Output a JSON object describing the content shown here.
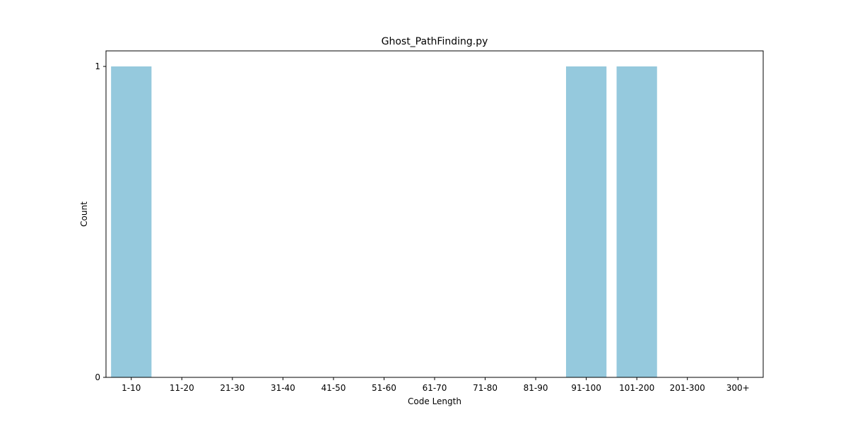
{
  "chart_data": {
    "type": "bar",
    "title": "Ghost_PathFinding.py",
    "xlabel": "Code Length",
    "ylabel": "Count",
    "categories": [
      "1-10",
      "11-20",
      "21-30",
      "31-40",
      "41-50",
      "51-60",
      "61-70",
      "71-80",
      "81-90",
      "91-100",
      "101-200",
      "201-300",
      "300+"
    ],
    "values": [
      1,
      0,
      0,
      0,
      0,
      0,
      0,
      0,
      0,
      1,
      1,
      0,
      0
    ],
    "ylim": [
      0,
      1.05
    ],
    "yticks": [
      0,
      1
    ],
    "grid": false,
    "bar_color": "#95c9dd"
  }
}
